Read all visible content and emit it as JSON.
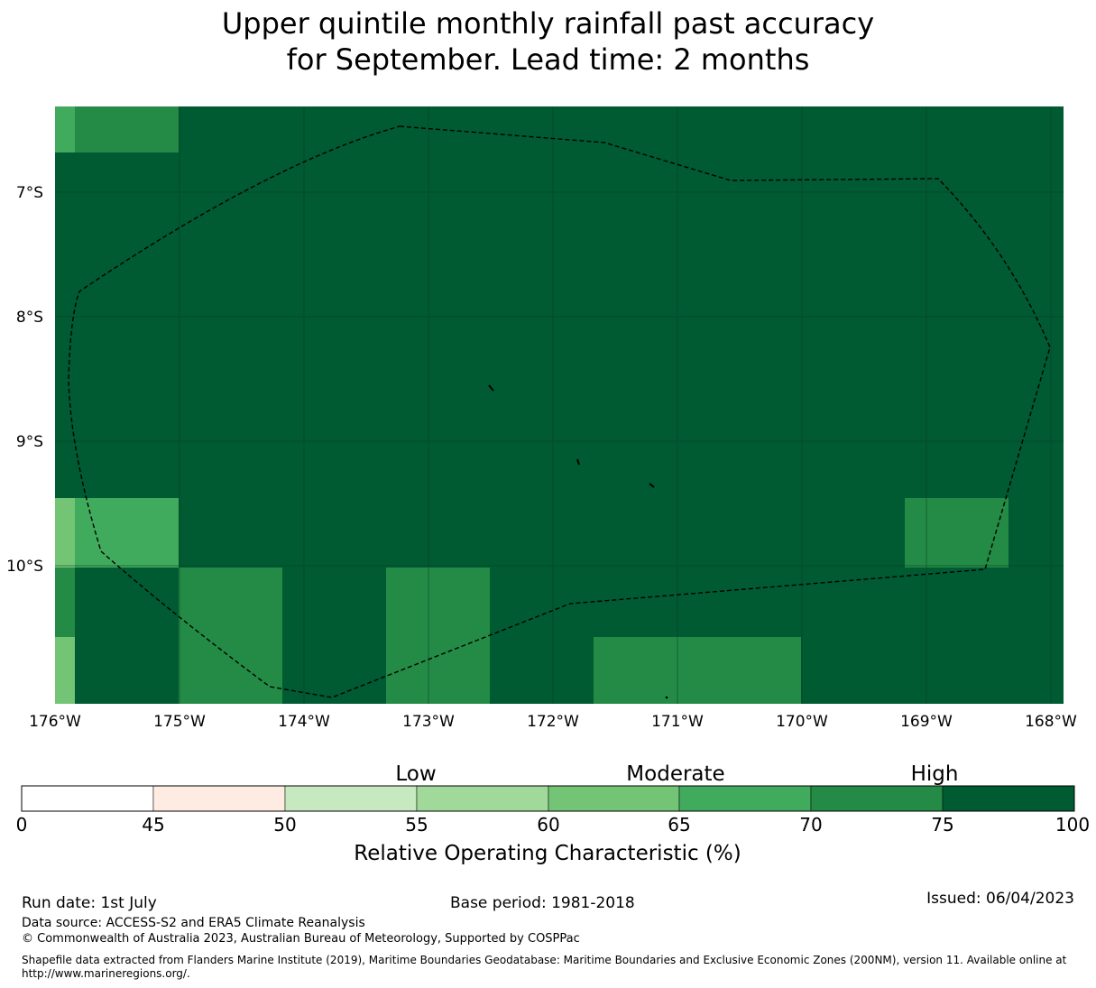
{
  "title": {
    "line1": "Upper quintile monthly rainfall past accuracy",
    "line2": "for September. Lead time: 2 months"
  },
  "map": {
    "lat_ticks": [
      "7°S",
      "8°S",
      "9°S",
      "10°S"
    ],
    "lon_ticks": [
      "176°W",
      "175°W",
      "174°W",
      "173°W",
      "172°W",
      "171°W",
      "170°W",
      "169°W",
      "168°W"
    ],
    "grid": "on"
  },
  "chart_data": {
    "type": "heatmap",
    "title": "Upper quintile monthly rainfall past accuracy for September. Lead time: 2 months",
    "x": [
      "176°W",
      "175°W",
      "174°W",
      "173°W",
      "172°W",
      "171°W",
      "170°W",
      "169°W",
      "168°W"
    ],
    "y": [
      "7°S",
      "8°S",
      "9°S",
      "10°S"
    ],
    "value_description": "Relative Operating Characteristic (%) by grid cell",
    "cells": [
      {
        "lon": -176.1,
        "lat": -6.4,
        "category": "60-65"
      },
      {
        "lon": -175.4,
        "lat": -6.4,
        "category": "70-75"
      },
      {
        "lon": -172.0,
        "lat": -8.5,
        "category": "75-100"
      },
      {
        "lon": -176.1,
        "lat": -9.7,
        "category": "60-65"
      },
      {
        "lon": -175.4,
        "lat": -9.7,
        "category": "65-70"
      },
      {
        "lon": -168.8,
        "lat": -9.7,
        "category": "70-75"
      },
      {
        "lon": -176.1,
        "lat": -10.3,
        "category": "70-75"
      },
      {
        "lon": -174.6,
        "lat": -10.6,
        "category": "70-75"
      },
      {
        "lon": -172.9,
        "lat": -10.6,
        "category": "70-75"
      },
      {
        "lon": -176.1,
        "lat": -10.8,
        "category": "60-65"
      },
      {
        "lon": -170.9,
        "lat": -10.8,
        "category": "70-75"
      }
    ]
  },
  "colorbar": {
    "ticks": [
      "0",
      "45",
      "50",
      "55",
      "60",
      "65",
      "70",
      "75",
      "100"
    ],
    "colors": [
      "#ffffff",
      "#feebe2",
      "#c7e9c0",
      "#a1d99b",
      "#74c476",
      "#41ab5d",
      "#238b45",
      "#005a32"
    ],
    "categories": [
      "Low",
      "Moderate",
      "High"
    ],
    "label": "Relative Operating Characteristic (%)"
  },
  "footer": {
    "run_date": "Run date: 1st July",
    "base_period": "Base period: 1981-2018",
    "issued": "Issued: 06/04/2023",
    "data_source": "Data source: ACCESS-S2 and ERA5 Climate Reanalysis",
    "copyright": "© Commonwealth of Australia 2023, Australian Bureau of Meteorology, Supported by COSPPac",
    "shapefile": "Shapefile data extracted from Flanders Marine Institute (2019), Maritime Boundaries Geodatabase: Maritime Boundaries and Exclusive Economic Zones (200NM), version 11. Available online at http://www.marineregions.org/."
  }
}
